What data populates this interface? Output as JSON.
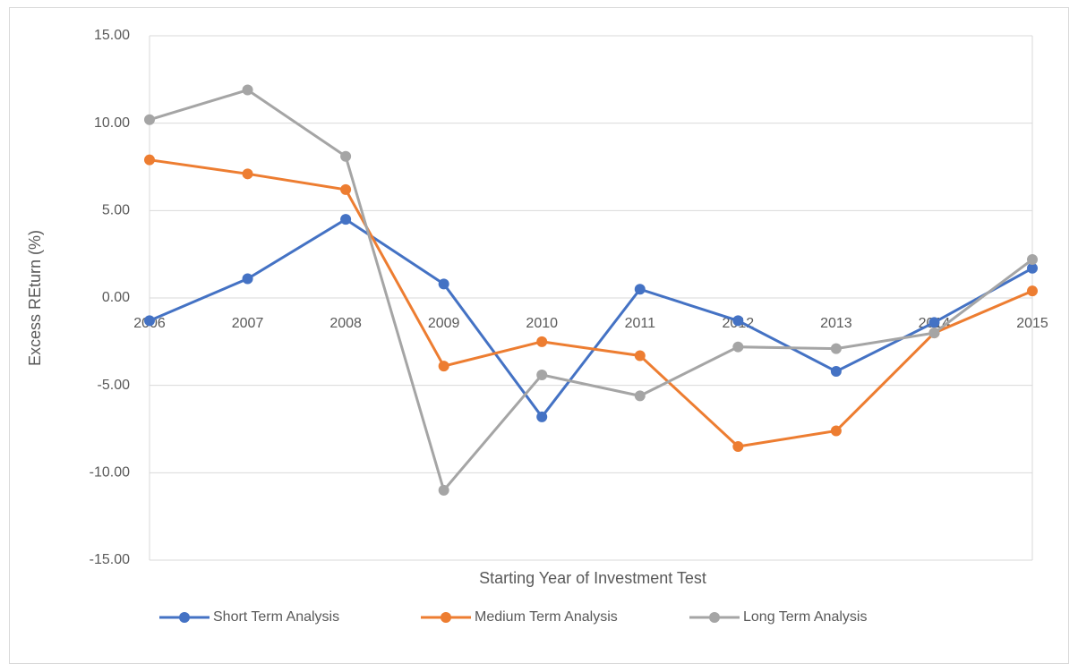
{
  "chart_data": {
    "type": "line",
    "xlabel": "Starting Year of Investment Test",
    "ylabel": "Excess REturn (%)",
    "categories": [
      "2006",
      "2007",
      "2008",
      "2009",
      "2010",
      "2011",
      "2012",
      "2013",
      "2014",
      "2015"
    ],
    "series": [
      {
        "name": "Short Term Analysis",
        "color": "#4472c4",
        "values": [
          -1.3,
          1.1,
          4.5,
          0.8,
          -6.8,
          0.5,
          -1.3,
          -4.2,
          -1.4,
          1.7
        ]
      },
      {
        "name": "Medium Term Analysis",
        "color": "#ed7d31",
        "values": [
          7.9,
          7.1,
          6.2,
          -3.9,
          -2.5,
          -3.3,
          -8.5,
          -7.6,
          -2.0,
          0.4
        ]
      },
      {
        "name": "Long Term Analysis",
        "color": "#a5a5a5",
        "values": [
          10.2,
          11.9,
          8.1,
          -11.0,
          -4.4,
          -5.6,
          -2.8,
          -2.9,
          -2.0,
          2.2
        ]
      }
    ],
    "ylim": [
      -15,
      15
    ],
    "yticks": [
      {
        "value": -15,
        "label": "-15.00"
      },
      {
        "value": -10,
        "label": "-10.00"
      },
      {
        "value": -5,
        "label": "-5.00"
      },
      {
        "value": 0,
        "label": "0.00"
      },
      {
        "value": 5,
        "label": "5.00"
      },
      {
        "value": 10,
        "label": "10.00"
      },
      {
        "value": 15,
        "label": "15.00"
      }
    ],
    "grid": true,
    "legend": "bottom"
  }
}
